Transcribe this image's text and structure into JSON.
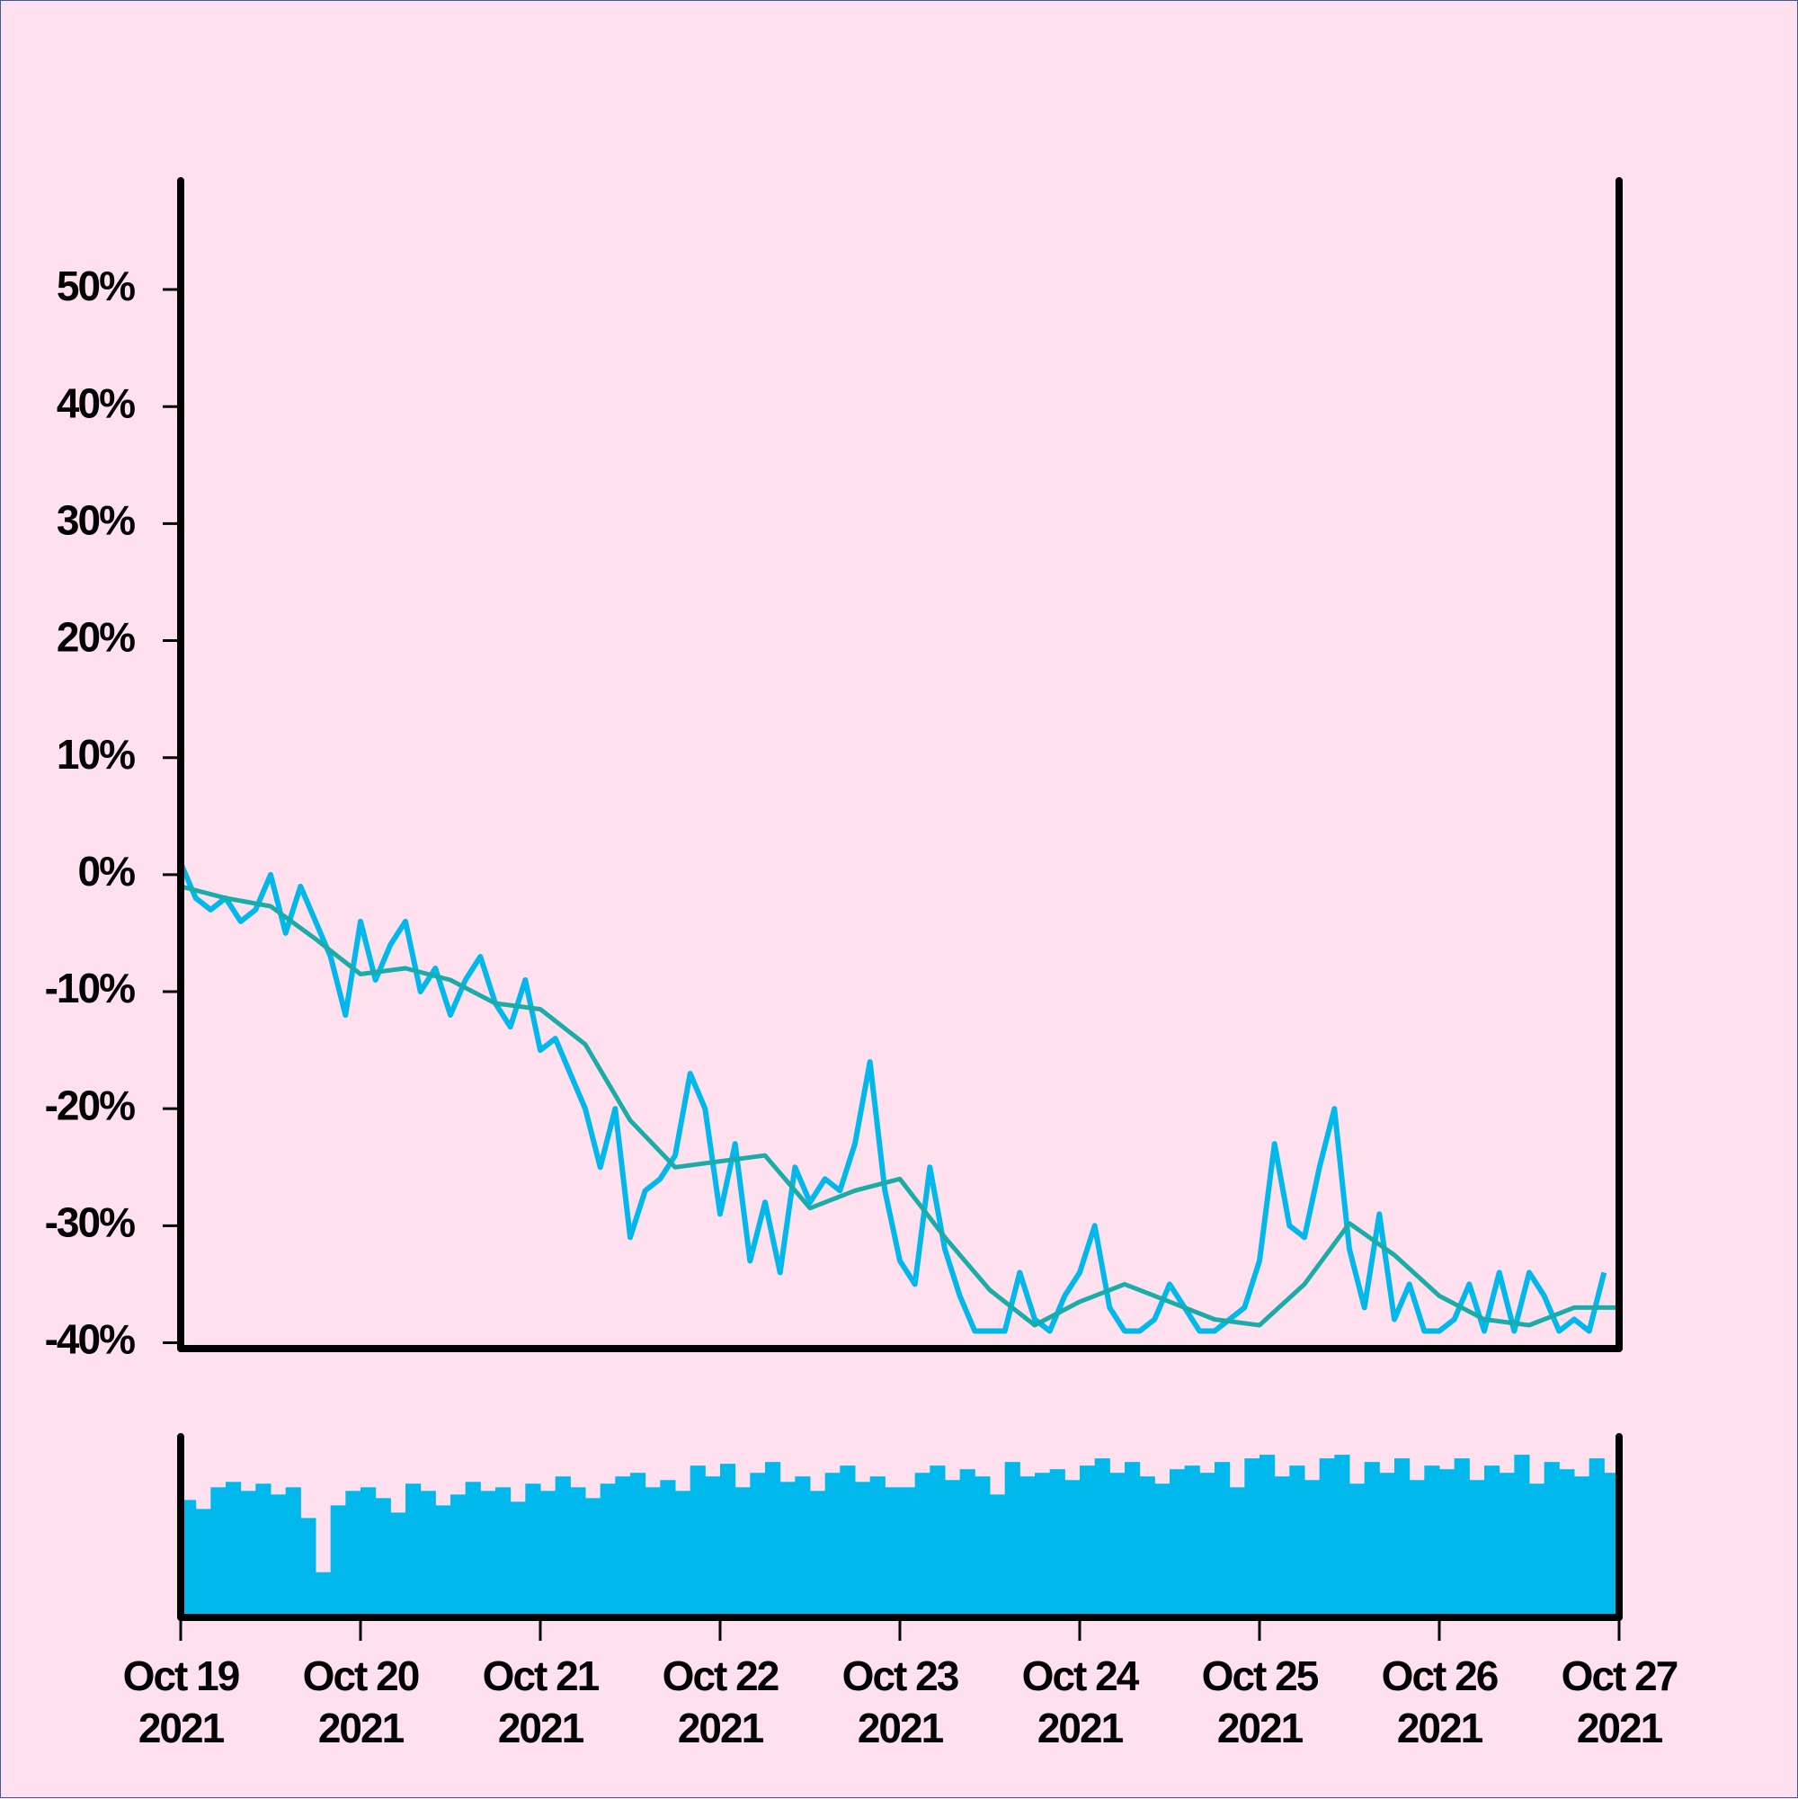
{
  "chart_data": [
    {
      "type": "line",
      "xlim": [
        0,
        192
      ],
      "ylim": [
        -40.5,
        59.3
      ],
      "yticks": [
        {
          "value": 50,
          "label": "50%"
        },
        {
          "value": 40,
          "label": "40%"
        },
        {
          "value": 30,
          "label": "30%"
        },
        {
          "value": 20,
          "label": "20%"
        },
        {
          "value": 10,
          "label": "10%"
        },
        {
          "value": 0,
          "label": "0%"
        },
        {
          "value": -10,
          "label": "-10%"
        },
        {
          "value": -20,
          "label": "-20%"
        },
        {
          "value": -30,
          "label": "-30%"
        },
        {
          "value": -40,
          "label": "-40%"
        }
      ],
      "series": [
        {
          "color": "#00b8ec",
          "x": [
            0,
            2,
            4,
            6,
            8,
            10,
            12,
            14,
            16,
            18,
            20,
            22,
            24,
            26,
            28,
            30,
            32,
            34,
            36,
            38,
            40,
            42,
            44,
            46,
            48,
            50,
            52,
            54,
            56,
            58,
            60,
            62,
            64,
            66,
            68,
            70,
            72,
            74,
            76,
            78,
            80,
            82,
            84,
            86,
            88,
            90,
            92,
            94,
            96,
            98,
            100,
            102,
            104,
            106,
            108,
            110,
            112,
            114,
            116,
            118,
            120,
            122,
            124,
            126,
            128,
            130,
            132,
            134,
            136,
            138,
            140,
            142,
            144,
            146,
            148,
            150,
            152,
            154,
            156,
            158,
            160,
            162,
            164,
            166,
            168,
            170,
            172,
            174,
            176,
            178,
            180,
            182,
            184,
            186,
            188,
            190
          ],
          "values": [
            1,
            -2,
            -3,
            -2,
            -4,
            -3,
            0,
            -5,
            -1,
            -4,
            -7,
            -12,
            -4,
            -9,
            -6,
            -4,
            -10,
            -8,
            -12,
            -9,
            -7,
            -11,
            -13,
            -9,
            -15,
            -14,
            -17,
            -20,
            -25,
            -20,
            -31,
            -27,
            -26,
            -24,
            -17,
            -20,
            -29,
            -23,
            -33,
            -28,
            -34,
            -25,
            -28,
            -26,
            -27,
            -23,
            -16,
            -27,
            -33,
            -35,
            -25,
            -32,
            -36,
            -39,
            -39,
            -39,
            -34,
            -38,
            -39,
            -36,
            -34,
            -30,
            -37,
            -39,
            -39,
            -38,
            -35,
            -37,
            -39,
            -39,
            -38,
            -37,
            -33,
            -23,
            -30,
            -31,
            -25,
            -20,
            -32,
            -37,
            -29,
            -38,
            -35,
            -39,
            -39,
            -38,
            -35,
            -39,
            -34,
            -39,
            -34,
            -36,
            -39,
            -38,
            -39,
            -34
          ]
        },
        {
          "color": "#1aada8",
          "x": [
            0,
            6,
            12,
            18,
            24,
            30,
            36,
            42,
            48,
            54,
            60,
            66,
            72,
            78,
            84,
            90,
            96,
            102,
            108,
            114,
            120,
            126,
            132,
            138,
            144,
            150,
            156,
            162,
            168,
            174,
            180,
            186,
            192
          ],
          "values": [
            -1,
            -2,
            -2.7,
            -5.5,
            -8.5,
            -8,
            -9,
            -11,
            -11.5,
            -14.5,
            -21,
            -25,
            -24.5,
            -24,
            -28.5,
            -27,
            -26,
            -31,
            -35.5,
            -38.5,
            -36.5,
            -35,
            -36.5,
            -38,
            -38.5,
            -35,
            -29.8,
            -32.5,
            -36,
            -38,
            -38.5,
            -37,
            -37
          ]
        }
      ]
    },
    {
      "type": "bar",
      "color": "#00b8ec",
      "xlim": [
        0,
        192
      ],
      "ylim": [
        0,
        100
      ],
      "xticks": [
        {
          "value": 0,
          "label": "Oct 19\n2021"
        },
        {
          "value": 24,
          "label": "Oct 20\n2021"
        },
        {
          "value": 48,
          "label": "Oct 21\n2021"
        },
        {
          "value": 72,
          "label": "Oct 22\n2021"
        },
        {
          "value": 96,
          "label": "Oct 23\n2021"
        },
        {
          "value": 120,
          "label": "Oct 24\n2021"
        },
        {
          "value": 144,
          "label": "Oct 25\n2021"
        },
        {
          "value": 168,
          "label": "Oct 26\n2021"
        },
        {
          "value": 192,
          "label": "Oct 27\n2021"
        }
      ],
      "x": [
        0,
        2,
        4,
        6,
        8,
        10,
        12,
        14,
        16,
        18,
        20,
        22,
        24,
        26,
        28,
        30,
        32,
        34,
        36,
        38,
        40,
        42,
        44,
        46,
        48,
        50,
        52,
        54,
        56,
        58,
        60,
        62,
        64,
        66,
        68,
        70,
        72,
        74,
        76,
        78,
        80,
        82,
        84,
        86,
        88,
        90,
        92,
        94,
        96,
        98,
        100,
        102,
        104,
        106,
        108,
        110,
        112,
        114,
        116,
        118,
        120,
        122,
        124,
        126,
        128,
        130,
        132,
        134,
        136,
        138,
        140,
        142,
        144,
        146,
        148,
        150,
        152,
        154,
        156,
        158,
        160,
        162,
        164,
        166,
        168,
        170,
        172,
        174,
        176,
        178,
        180,
        182,
        184,
        186,
        188,
        190
      ],
      "values": [
        65,
        60,
        72,
        75,
        70,
        74,
        68,
        72,
        55,
        25,
        62,
        70,
        72,
        66,
        58,
        74,
        70,
        62,
        68,
        75,
        70,
        72,
        64,
        74,
        70,
        78,
        72,
        66,
        74,
        78,
        80,
        72,
        76,
        70,
        84,
        78,
        85,
        72,
        80,
        86,
        75,
        78,
        70,
        80,
        84,
        75,
        78,
        72,
        72,
        80,
        84,
        76,
        82,
        78,
        68,
        86,
        78,
        80,
        82,
        76,
        84,
        88,
        80,
        86,
        78,
        74,
        82,
        84,
        80,
        86,
        72,
        88,
        90,
        78,
        84,
        76,
        88,
        90,
        74,
        86,
        80,
        88,
        76,
        84,
        82,
        88,
        76,
        84,
        80,
        90,
        74,
        86,
        82,
        78,
        88,
        80
      ]
    }
  ]
}
